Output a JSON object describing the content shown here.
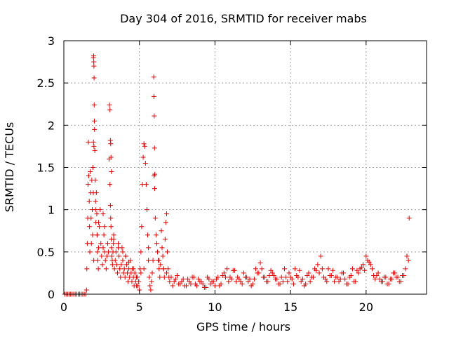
{
  "chart_data": {
    "type": "scatter",
    "title": "Day 304 of 2016, SRMTID for receiver mabs",
    "xlabel": "GPS time / hours",
    "ylabel": "SRMTID / TECUs",
    "xlim": [
      0,
      24
    ],
    "ylim": [
      0,
      3
    ],
    "xticks": [
      0,
      5,
      10,
      15,
      20
    ],
    "yticks": [
      0,
      0.5,
      1,
      1.5,
      2,
      2.5,
      3
    ],
    "xtick_labels": [
      "0",
      "5",
      "10",
      "15",
      "20"
    ],
    "ytick_labels": [
      "0",
      "0.5",
      "1",
      "1.5",
      "2",
      "2.5",
      "3"
    ],
    "grid": true,
    "marker": "+",
    "color": "#e00000",
    "series": [
      {
        "name": "SRMTID",
        "x": [
          0.05,
          0.15,
          0.25,
          0.35,
          0.45,
          0.55,
          0.65,
          0.75,
          0.85,
          0.95,
          1.05,
          1.15,
          1.25,
          1.35,
          1.45,
          1.5,
          1.52,
          1.55,
          1.58,
          1.6,
          1.62,
          1.65,
          1.68,
          1.7,
          1.72,
          1.75,
          1.78,
          1.8,
          1.82,
          1.85,
          1.88,
          1.9,
          1.92,
          1.95,
          1.98,
          1.96,
          1.97,
          1.98,
          1.99,
          2.0,
          2.01,
          2.02,
          2.03,
          1.96,
          1.99,
          2.05,
          2.08,
          2.1,
          2.12,
          2.15,
          2.18,
          2.2,
          2.22,
          2.25,
          2.28,
          2.3,
          2.35,
          2.4,
          2.45,
          2.5,
          2.55,
          2.6,
          2.65,
          2.7,
          2.75,
          2.8,
          2.85,
          2.9,
          2.95,
          3.0,
          3.02,
          3.05,
          3.08,
          3.1,
          3.12,
          3.15,
          3.05,
          3.08,
          3.1,
          3.12,
          3.14,
          3.16,
          3.18,
          3.2,
          3.22,
          3.25,
          3.28,
          3.3,
          3.35,
          3.4,
          3.45,
          3.5,
          3.55,
          3.6,
          3.65,
          3.7,
          3.75,
          3.8,
          3.85,
          3.9,
          3.95,
          4.0,
          4.05,
          4.1,
          4.15,
          4.2,
          4.25,
          4.3,
          4.35,
          4.4,
          4.45,
          4.5,
          4.55,
          4.6,
          4.65,
          4.7,
          4.75,
          4.8,
          4.85,
          4.9,
          4.95,
          5.0,
          5.05,
          5.1,
          5.15,
          5.2,
          5.25,
          5.3,
          5.35,
          5.4,
          5.45,
          5.5,
          5.55,
          5.6,
          5.65,
          5.7,
          5.75,
          5.8,
          5.85,
          5.9,
          5.95,
          5.96,
          5.98,
          6.0,
          6.02,
          5.97,
          6.01,
          6.05,
          6.1,
          6.15,
          6.2,
          6.25,
          6.3,
          6.35,
          6.4,
          6.45,
          6.5,
          6.55,
          6.6,
          6.65,
          6.7,
          6.75,
          6.8,
          6.85,
          6.9,
          6.95,
          7.0,
          7.2,
          7.4,
          7.6,
          7.8,
          8.0,
          8.2,
          8.4,
          8.6,
          8.8,
          9.0,
          9.2,
          9.4,
          9.6,
          9.8,
          10.0,
          10.2,
          10.4,
          10.6,
          10.8,
          11.0,
          11.2,
          11.4,
          11.6,
          11.8,
          12.0,
          12.2,
          12.4,
          12.6,
          12.8,
          13.0,
          13.1,
          13.2,
          13.4,
          13.6,
          13.8,
          14.0,
          14.2,
          14.4,
          14.6,
          14.8,
          15.0,
          15.2,
          15.4,
          15.6,
          15.8,
          16.0,
          16.2,
          16.4,
          16.6,
          16.8,
          17.0,
          17.1,
          17.2,
          17.4,
          17.6,
          17.8,
          18.0,
          18.2,
          18.4,
          18.6,
          18.8,
          19.0,
          19.2,
          19.4,
          19.6,
          19.8,
          20.0,
          20.2,
          20.4,
          20.5,
          20.6,
          20.8,
          21.0,
          21.2,
          21.4,
          21.6,
          21.8,
          22.0,
          22.2,
          22.4,
          22.6,
          22.7,
          22.8,
          22.85,
          2.1,
          2.2,
          2.3,
          2.6,
          2.7,
          3.3,
          3.6,
          3.9,
          4.1,
          4.3,
          4.6,
          4.8,
          5.1,
          5.3,
          5.6,
          6.3,
          6.6,
          6.8,
          7.1,
          7.3,
          7.5,
          7.7,
          7.9,
          8.1,
          8.3,
          8.5,
          8.7,
          8.9,
          9.1,
          9.3,
          9.5,
          9.7,
          9.9,
          10.1,
          10.3,
          10.5,
          10.7,
          10.9,
          11.1,
          11.3,
          11.5,
          11.7,
          11.9,
          12.1,
          12.3,
          12.5,
          12.7,
          12.9,
          13.3,
          13.5,
          13.7,
          13.9,
          14.1,
          14.3,
          14.5,
          14.7,
          14.9,
          15.1,
          15.3,
          15.5,
          15.7,
          15.9,
          16.1,
          16.3,
          16.5,
          16.7,
          16.9,
          17.3,
          17.5,
          17.7,
          17.9,
          18.1,
          18.3,
          18.5,
          18.7,
          18.9,
          19.1,
          19.3,
          19.5,
          19.7,
          19.9,
          20.1,
          20.3,
          20.7,
          20.9,
          21.1,
          21.3,
          21.5,
          21.7,
          21.9,
          22.1,
          22.3,
          22.5
        ],
        "y": [
          0,
          0,
          0,
          0,
          0,
          0,
          0,
          0,
          0,
          0,
          0,
          0,
          0,
          0,
          0,
          0.05,
          0.3,
          0.6,
          0.9,
          1.3,
          1.8,
          1.4,
          1.1,
          0.8,
          0.5,
          1.45,
          1.2,
          0.9,
          0.6,
          1.35,
          1.0,
          0.7,
          1.5,
          1.2,
          0.4,
          2.8,
          2.82,
          2.75,
          2.7,
          2.56,
          2.24,
          2.05,
          1.95,
          1.8,
          1.75,
          1.7,
          1.35,
          1.1,
          0.85,
          1.2,
          0.95,
          0.7,
          0.5,
          0.4,
          0.3,
          0.55,
          0.8,
          1.0,
          0.6,
          0.45,
          0.35,
          0.55,
          0.7,
          0.5,
          0.4,
          0.3,
          0.45,
          0.6,
          0.5,
          1.6,
          2.24,
          2.18,
          1.82,
          1.78,
          1.62,
          1.45,
          1.3,
          1.05,
          0.9,
          0.8,
          0.65,
          0.55,
          0.45,
          0.4,
          0.35,
          0.5,
          0.6,
          0.7,
          0.3,
          0.4,
          0.5,
          0.35,
          0.25,
          0.6,
          0.45,
          0.3,
          0.2,
          0.35,
          0.55,
          0.4,
          0.25,
          0.3,
          0.2,
          0.45,
          0.35,
          0.25,
          0.15,
          0.3,
          0.2,
          0.4,
          0.25,
          0.15,
          0.3,
          0.2,
          0.1,
          0.25,
          0.15,
          0.1,
          0.2,
          0.1,
          0.15,
          0.05,
          0.3,
          0.5,
          0.8,
          1.3,
          1.62,
          1.78,
          1.75,
          1.55,
          1.3,
          1.0,
          0.7,
          0.4,
          0.2,
          0.1,
          0.05,
          0.15,
          0.25,
          0.4,
          2.57,
          2.34,
          2.11,
          1.73,
          1.42,
          1.4,
          1.25,
          0.9,
          0.7,
          0.6,
          0.5,
          0.4,
          0.3,
          0.2,
          0.35,
          0.75,
          0.55,
          0.45,
          0.3,
          0.2,
          0.65,
          0.85,
          0.95,
          0.5,
          0.3,
          0.2,
          0.15,
          0.1,
          0.18,
          0.12,
          0.15,
          0.1,
          0.18,
          0.12,
          0.2,
          0.1,
          0.15,
          0.12,
          0.08,
          0.18,
          0.15,
          0.1,
          0.2,
          0.12,
          0.25,
          0.3,
          0.2,
          0.28,
          0.15,
          0.18,
          0.12,
          0.2,
          0.15,
          0.1,
          0.18,
          0.25,
          0.37,
          0.3,
          0.2,
          0.15,
          0.22,
          0.25,
          0.18,
          0.12,
          0.2,
          0.3,
          0.15,
          0.2,
          0.12,
          0.22,
          0.28,
          0.18,
          0.12,
          0.25,
          0.2,
          0.3,
          0.35,
          0.45,
          0.3,
          0.2,
          0.15,
          0.22,
          0.28,
          0.2,
          0.15,
          0.25,
          0.18,
          0.12,
          0.22,
          0.15,
          0.28,
          0.3,
          0.35,
          0.45,
          0.38,
          0.3,
          0.22,
          0.18,
          0.25,
          0.15,
          0.2,
          0.12,
          0.18,
          0.25,
          0.2,
          0.15,
          0.22,
          0.3,
          0.45,
          0.4,
          0.9,
          1.0,
          0.7,
          0.85,
          0.95,
          0.8,
          0.65,
          0.55,
          0.5,
          0.45,
          0.38,
          0.3,
          0.2,
          0.25,
          0.3,
          0.55,
          0.4,
          0.3,
          0.25,
          0.2,
          0.15,
          0.22,
          0.12,
          0.18,
          0.1,
          0.15,
          0.2,
          0.12,
          0.18,
          0.15,
          0.08,
          0.2,
          0.12,
          0.15,
          0.18,
          0.1,
          0.22,
          0.2,
          0.15,
          0.18,
          0.28,
          0.2,
          0.15,
          0.25,
          0.2,
          0.18,
          0.12,
          0.3,
          0.25,
          0.2,
          0.15,
          0.28,
          0.22,
          0.18,
          0.12,
          0.15,
          0.2,
          0.25,
          0.18,
          0.3,
          0.2,
          0.15,
          0.1,
          0.22,
          0.15,
          0.2,
          0.28,
          0.25,
          0.18,
          0.3,
          0.22,
          0.15,
          0.2,
          0.18,
          0.25,
          0.12,
          0.2,
          0.3,
          0.15,
          0.25,
          0.32,
          0.28,
          0.4,
          0.35,
          0.22,
          0.18,
          0.15,
          0.2,
          0.12,
          0.18,
          0.25,
          0.2,
          0.15,
          0.22
        ]
      }
    ]
  }
}
